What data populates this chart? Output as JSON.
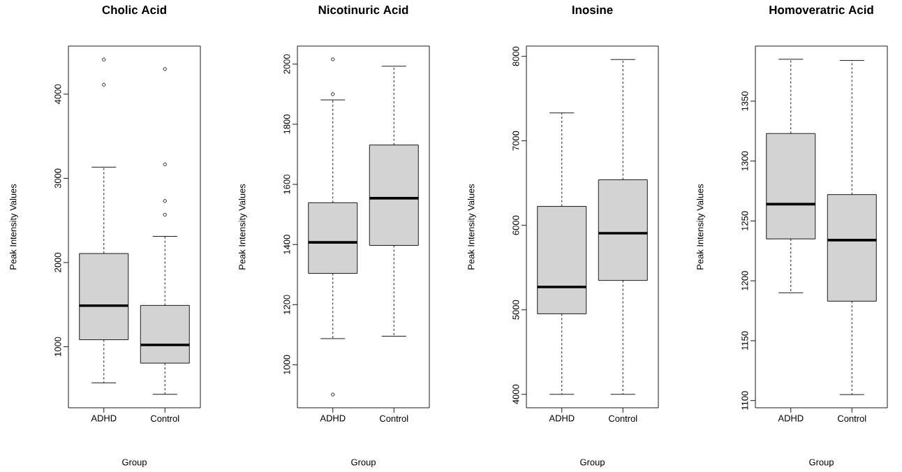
{
  "chart_data": [
    {
      "type": "box",
      "title": "Cholic Acid",
      "xlabel": "Group",
      "ylabel": "Peak Intensity Values",
      "categories": [
        "ADHD",
        "Control"
      ],
      "series": [
        {
          "color": "#d3d3d3",
          "boxes": [
            {
              "low": 571,
              "q1": 1083,
              "median": 1488,
              "q3": 2107,
              "high": 3133,
              "outliers": [
                4411,
                4112
              ]
            },
            {
              "low": 435,
              "q1": 805,
              "median": 1021,
              "q3": 1491,
              "high": 2311,
              "outliers": [
                4299,
                3166,
                2731,
                2568
              ]
            }
          ]
        }
      ],
      "ylim": [
        275,
        4571
      ],
      "yticks": [
        1000,
        2000,
        3000,
        4000
      ]
    },
    {
      "type": "box",
      "title": "Nicotinuric Acid",
      "xlabel": "Group",
      "ylabel": "Peak Intensity Values",
      "categories": [
        "ADHD",
        "Control"
      ],
      "series": [
        {
          "color": "#d3d3d3",
          "boxes": [
            {
              "low": 1087,
              "q1": 1304,
              "median": 1407,
              "q3": 1539,
              "high": 1881,
              "outliers": [
                2016,
                1900,
                901
              ]
            },
            {
              "low": 1095,
              "q1": 1397,
              "median": 1554,
              "q3": 1731,
              "high": 1993
            }
          ]
        }
      ],
      "ylim": [
        857,
        2060
      ],
      "yticks": [
        1000,
        1200,
        1400,
        1600,
        1800,
        2000
      ]
    },
    {
      "type": "box",
      "title": "Inosine",
      "xlabel": "Group",
      "ylabel": "Peak Intensity Values",
      "categories": [
        "ADHD",
        "Control"
      ],
      "series": [
        {
          "color": "#d3d3d3",
          "boxes": [
            {
              "low": 4000,
              "q1": 4953,
              "median": 5271,
              "q3": 6224,
              "high": 7330
            },
            {
              "low": 4000,
              "q1": 5348,
              "median": 5906,
              "q3": 6539,
              "high": 7962
            }
          ]
        }
      ],
      "ylim": [
        3841,
        8121
      ],
      "yticks": [
        4000,
        5000,
        6000,
        7000,
        8000
      ]
    },
    {
      "type": "box",
      "title": "Homoveratric Acid",
      "xlabel": "Group",
      "ylabel": "Peak Intensity Values",
      "categories": [
        "ADHD",
        "Control"
      ],
      "series": [
        {
          "color": "#d3d3d3",
          "boxes": [
            {
              "low": 1190,
              "q1": 1235,
              "median": 1264,
              "q3": 1323,
              "high": 1385
            },
            {
              "low": 1105,
              "q1": 1183,
              "median": 1234,
              "q3": 1272,
              "high": 1384
            }
          ]
        }
      ],
      "ylim": [
        1094,
        1396
      ],
      "yticks": [
        1100,
        1150,
        1200,
        1250,
        1300,
        1350
      ]
    }
  ]
}
